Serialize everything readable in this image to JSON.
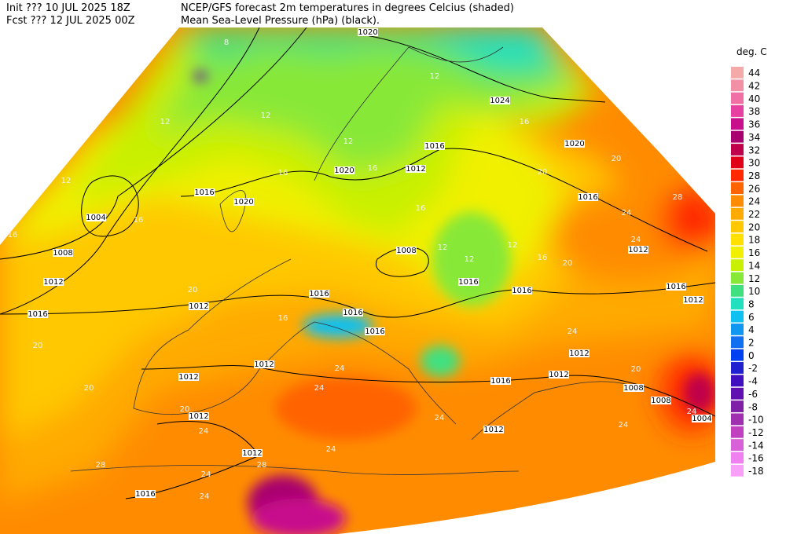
{
  "header": {
    "init": "Init  ??? 10 JUL 2025 18Z",
    "fcst": "Fcst ??? 12 JUL 2025 00Z",
    "title": "NCEP/GFS forecast 2m temperatures in degrees Celcius (shaded)",
    "subtitle": "Mean Sea-Level Pressure (hPa) (black)."
  },
  "legend": {
    "title": "deg. C",
    "items": [
      {
        "value": 44,
        "color": "#f5aaaa"
      },
      {
        "value": 42,
        "color": "#f291a5"
      },
      {
        "value": 40,
        "color": "#f070a5"
      },
      {
        "value": 38,
        "color": "#e840a0"
      },
      {
        "value": 36,
        "color": "#c8108c"
      },
      {
        "value": 34,
        "color": "#a8006e"
      },
      {
        "value": 32,
        "color": "#c0004a"
      },
      {
        "value": 30,
        "color": "#e00018"
      },
      {
        "value": 28,
        "color": "#ff2800"
      },
      {
        "value": 26,
        "color": "#ff6400"
      },
      {
        "value": 24,
        "color": "#ff8c00"
      },
      {
        "value": 22,
        "color": "#ffaa00"
      },
      {
        "value": 20,
        "color": "#ffc800"
      },
      {
        "value": 18,
        "color": "#ffe000"
      },
      {
        "value": 16,
        "color": "#f0f000"
      },
      {
        "value": 14,
        "color": "#c8f000"
      },
      {
        "value": 12,
        "color": "#88e838"
      },
      {
        "value": 10,
        "color": "#40e080"
      },
      {
        "value": 8,
        "color": "#20e0c0"
      },
      {
        "value": 6,
        "color": "#10c0f0"
      },
      {
        "value": 4,
        "color": "#1098f0"
      },
      {
        "value": 2,
        "color": "#1070f0"
      },
      {
        "value": 0,
        "color": "#0040f0"
      },
      {
        "value": -2,
        "color": "#2020d0"
      },
      {
        "value": -4,
        "color": "#4010c0"
      },
      {
        "value": -6,
        "color": "#6010b0"
      },
      {
        "value": -8,
        "color": "#8020a8"
      },
      {
        "value": -10,
        "color": "#a030b0"
      },
      {
        "value": -12,
        "color": "#c040c0"
      },
      {
        "value": -14,
        "color": "#d860d8"
      },
      {
        "value": -16,
        "color": "#f080f0"
      },
      {
        "value": -18,
        "color": "#f8a0f8"
      }
    ]
  },
  "isobar_labels": [
    "1020",
    "1024",
    "1016",
    "1012",
    "1020",
    "1020",
    "1016",
    "1020",
    "1004",
    "1008",
    "1012",
    "1016",
    "1012",
    "1016",
    "1008",
    "1016",
    "1016",
    "1016",
    "1016",
    "1016",
    "1012",
    "1016",
    "1012",
    "1012",
    "1012",
    "1012",
    "1012",
    "1016",
    "1012",
    "1012",
    "1008",
    "1008",
    "1004",
    "1012",
    "1016"
  ],
  "temperature_labels": [
    "8",
    "12",
    "12",
    "12",
    "16",
    "12",
    "16",
    "12",
    "16",
    "16",
    "16",
    "20",
    "20",
    "24",
    "28",
    "24",
    "20",
    "16",
    "16",
    "12",
    "12",
    "12",
    "20",
    "20",
    "16",
    "24",
    "24",
    "20",
    "20",
    "24",
    "24",
    "28",
    "24",
    "24",
    "28",
    "24",
    "20",
    "24",
    "24",
    "24"
  ]
}
